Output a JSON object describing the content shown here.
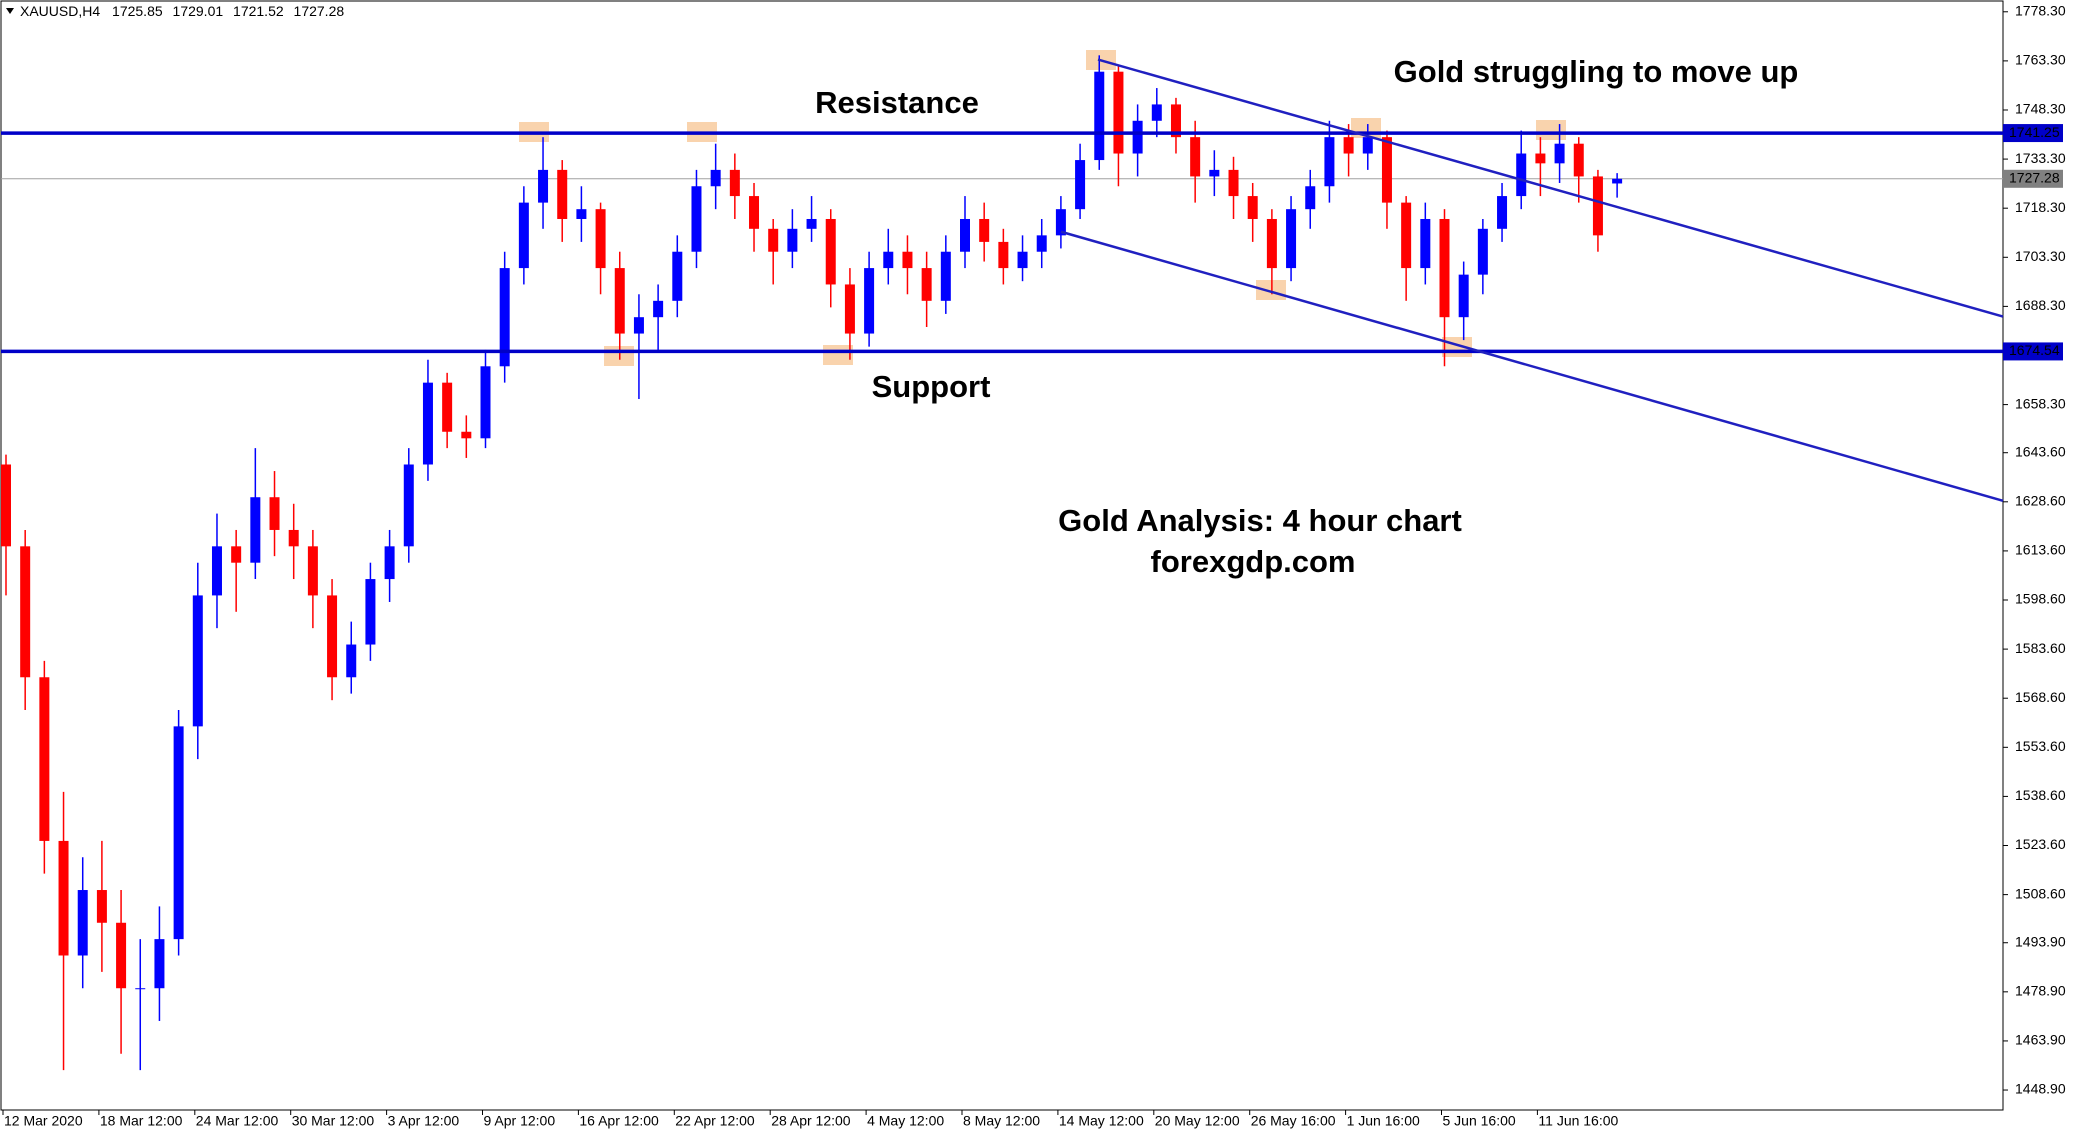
{
  "chart_data": {
    "type": "candlestick",
    "symbol": "XAUUSD,H4",
    "colors": {
      "up": "#0000ff",
      "down": "#ff0000"
    },
    "ylim": [
      1442.8,
      1781.9
    ],
    "yticks": [
      {
        "value": 1778.3,
        "label": "1778.30"
      },
      {
        "value": 1763.3,
        "label": "1763.30"
      },
      {
        "value": 1748.3,
        "label": "1748.30"
      },
      {
        "value": 1733.3,
        "label": "1733.30"
      },
      {
        "value": 1718.3,
        "label": "1718.30"
      },
      {
        "value": 1703.3,
        "label": "1703.30"
      },
      {
        "value": 1688.3,
        "label": "1688.30"
      },
      {
        "value": 1658.3,
        "label": "1658.30"
      },
      {
        "value": 1643.6,
        "label": "1643.60"
      },
      {
        "value": 1628.6,
        "label": "1628.60"
      },
      {
        "value": 1613.6,
        "label": "1613.60"
      },
      {
        "value": 1598.6,
        "label": "1598.60"
      },
      {
        "value": 1583.6,
        "label": "1583.60"
      },
      {
        "value": 1568.6,
        "label": "1568.60"
      },
      {
        "value": 1553.6,
        "label": "1553.60"
      },
      {
        "value": 1538.6,
        "label": "1538.60"
      },
      {
        "value": 1523.6,
        "label": "1523.60"
      },
      {
        "value": 1508.6,
        "label": "1508.60"
      },
      {
        "value": 1493.9,
        "label": "1493.90"
      },
      {
        "value": 1478.9,
        "label": "1478.90"
      },
      {
        "value": 1463.9,
        "label": "1463.90"
      },
      {
        "value": 1448.9,
        "label": "1448.90"
      }
    ],
    "xtick_labels": [
      "12 Mar 2020",
      "18 Mar 12:00",
      "24 Mar 12:00",
      "30 Mar 12:00",
      "3 Apr 12:00",
      "9 Apr 12:00",
      "16 Apr 12:00",
      "22 Apr 12:00",
      "28 Apr 12:00",
      "4 May 12:00",
      "8 May 12:00",
      "14 May 12:00",
      "20 May 12:00",
      "26 May 16:00",
      "1 Jun 16:00",
      "5 Jun 16:00",
      "11 Jun 16:00"
    ],
    "hlines": [
      {
        "value": 1741.25,
        "color": "#0000c8"
      },
      {
        "value": 1674.54,
        "color": "#0000c8"
      }
    ],
    "trendlines": [
      {
        "start": 1763.7,
        "end": 1685.2,
        "color": "#2020c0"
      },
      {
        "start": 1711.1,
        "end": 1628.9,
        "color": "#2020c0"
      }
    ],
    "annotations": [
      {
        "text": "Resistance",
        "color": "#111111"
      },
      {
        "text": "Support",
        "color": "#111111"
      },
      {
        "text": "Gold struggling to move up",
        "color": "#1e8c1e"
      },
      {
        "text": "Gold Analysis: 4 hour chart",
        "color": "#1e8c1e"
      },
      {
        "text": "forexgdp.com",
        "color": "#808080"
      }
    ],
    "ohlc": [
      [
        1640,
        1643,
        1600,
        1615
      ],
      [
        1615,
        1620,
        1565,
        1575
      ],
      [
        1575,
        1580,
        1515,
        1525
      ],
      [
        1525,
        1540,
        1455,
        1490
      ],
      [
        1490,
        1520,
        1480,
        1510
      ],
      [
        1510,
        1525,
        1485,
        1500
      ],
      [
        1500,
        1510,
        1460,
        1480
      ],
      [
        1480,
        1495,
        1455,
        1480
      ],
      [
        1480,
        1505,
        1470,
        1495
      ],
      [
        1495,
        1565,
        1490,
        1560
      ],
      [
        1560,
        1610,
        1550,
        1600
      ],
      [
        1600,
        1625,
        1590,
        1615
      ],
      [
        1615,
        1620,
        1595,
        1610
      ],
      [
        1610,
        1645,
        1605,
        1630
      ],
      [
        1630,
        1638,
        1612,
        1620
      ],
      [
        1620,
        1628,
        1605,
        1615
      ],
      [
        1615,
        1620,
        1590,
        1600
      ],
      [
        1600,
        1605,
        1568,
        1575
      ],
      [
        1575,
        1592,
        1570,
        1585
      ],
      [
        1585,
        1610,
        1580,
        1605
      ],
      [
        1605,
        1620,
        1598,
        1615
      ],
      [
        1615,
        1645,
        1610,
        1640
      ],
      [
        1640,
        1672,
        1635,
        1665
      ],
      [
        1665,
        1668,
        1645,
        1650
      ],
      [
        1650,
        1655,
        1642,
        1648
      ],
      [
        1648,
        1675,
        1645,
        1670
      ],
      [
        1670,
        1705,
        1665,
        1700
      ],
      [
        1700,
        1725,
        1695,
        1720
      ],
      [
        1720,
        1740,
        1712,
        1730
      ],
      [
        1730,
        1733,
        1708,
        1715
      ],
      [
        1715,
        1725,
        1708,
        1718
      ],
      [
        1718,
        1720,
        1692,
        1700
      ],
      [
        1700,
        1705,
        1672,
        1680
      ],
      [
        1680,
        1692,
        1660,
        1685
      ],
      [
        1685,
        1695,
        1675,
        1690
      ],
      [
        1690,
        1710,
        1685,
        1705
      ],
      [
        1705,
        1730,
        1700,
        1725
      ],
      [
        1725,
        1738,
        1718,
        1730
      ],
      [
        1730,
        1735,
        1715,
        1722
      ],
      [
        1722,
        1726,
        1705,
        1712
      ],
      [
        1712,
        1715,
        1695,
        1705
      ],
      [
        1705,
        1718,
        1700,
        1712
      ],
      [
        1712,
        1722,
        1708,
        1715
      ],
      [
        1715,
        1718,
        1688,
        1695
      ],
      [
        1695,
        1700,
        1672,
        1680
      ],
      [
        1680,
        1705,
        1676,
        1700
      ],
      [
        1700,
        1712,
        1695,
        1705
      ],
      [
        1705,
        1710,
        1692,
        1700
      ],
      [
        1700,
        1705,
        1682,
        1690
      ],
      [
        1690,
        1710,
        1686,
        1705
      ],
      [
        1705,
        1722,
        1700,
        1715
      ],
      [
        1715,
        1720,
        1702,
        1708
      ],
      [
        1708,
        1712,
        1695,
        1700
      ],
      [
        1700,
        1710,
        1696,
        1705
      ],
      [
        1705,
        1715,
        1700,
        1710
      ],
      [
        1710,
        1722,
        1706,
        1718
      ],
      [
        1718,
        1738,
        1715,
        1733
      ],
      [
        1733,
        1765,
        1730,
        1760
      ],
      [
        1760,
        1762,
        1725,
        1735
      ],
      [
        1735,
        1750,
        1728,
        1745
      ],
      [
        1745,
        1755,
        1740,
        1750
      ],
      [
        1750,
        1752,
        1735,
        1740
      ],
      [
        1740,
        1745,
        1720,
        1728
      ],
      [
        1728,
        1736,
        1722,
        1730
      ],
      [
        1730,
        1734,
        1715,
        1722
      ],
      [
        1722,
        1726,
        1708,
        1715
      ],
      [
        1715,
        1718,
        1692,
        1700
      ],
      [
        1700,
        1722,
        1696,
        1718
      ],
      [
        1718,
        1730,
        1712,
        1725
      ],
      [
        1725,
        1745,
        1720,
        1740
      ],
      [
        1740,
        1744,
        1728,
        1735
      ],
      [
        1735,
        1744,
        1730,
        1740
      ],
      [
        1740,
        1742,
        1712,
        1720
      ],
      [
        1720,
        1722,
        1690,
        1700
      ],
      [
        1700,
        1720,
        1695,
        1715
      ],
      [
        1715,
        1718,
        1670,
        1685
      ],
      [
        1685,
        1702,
        1678,
        1698
      ],
      [
        1698,
        1715,
        1692,
        1712
      ],
      [
        1712,
        1726,
        1708,
        1722
      ],
      [
        1722,
        1742,
        1718,
        1735
      ],
      [
        1735,
        1740,
        1722,
        1732
      ],
      [
        1732,
        1744,
        1726,
        1738
      ],
      [
        1738,
        1740,
        1720,
        1728
      ],
      [
        1728,
        1730,
        1705,
        1710
      ],
      [
        1725.85,
        1729.01,
        1721.52,
        1727.28
      ]
    ]
  }
}
